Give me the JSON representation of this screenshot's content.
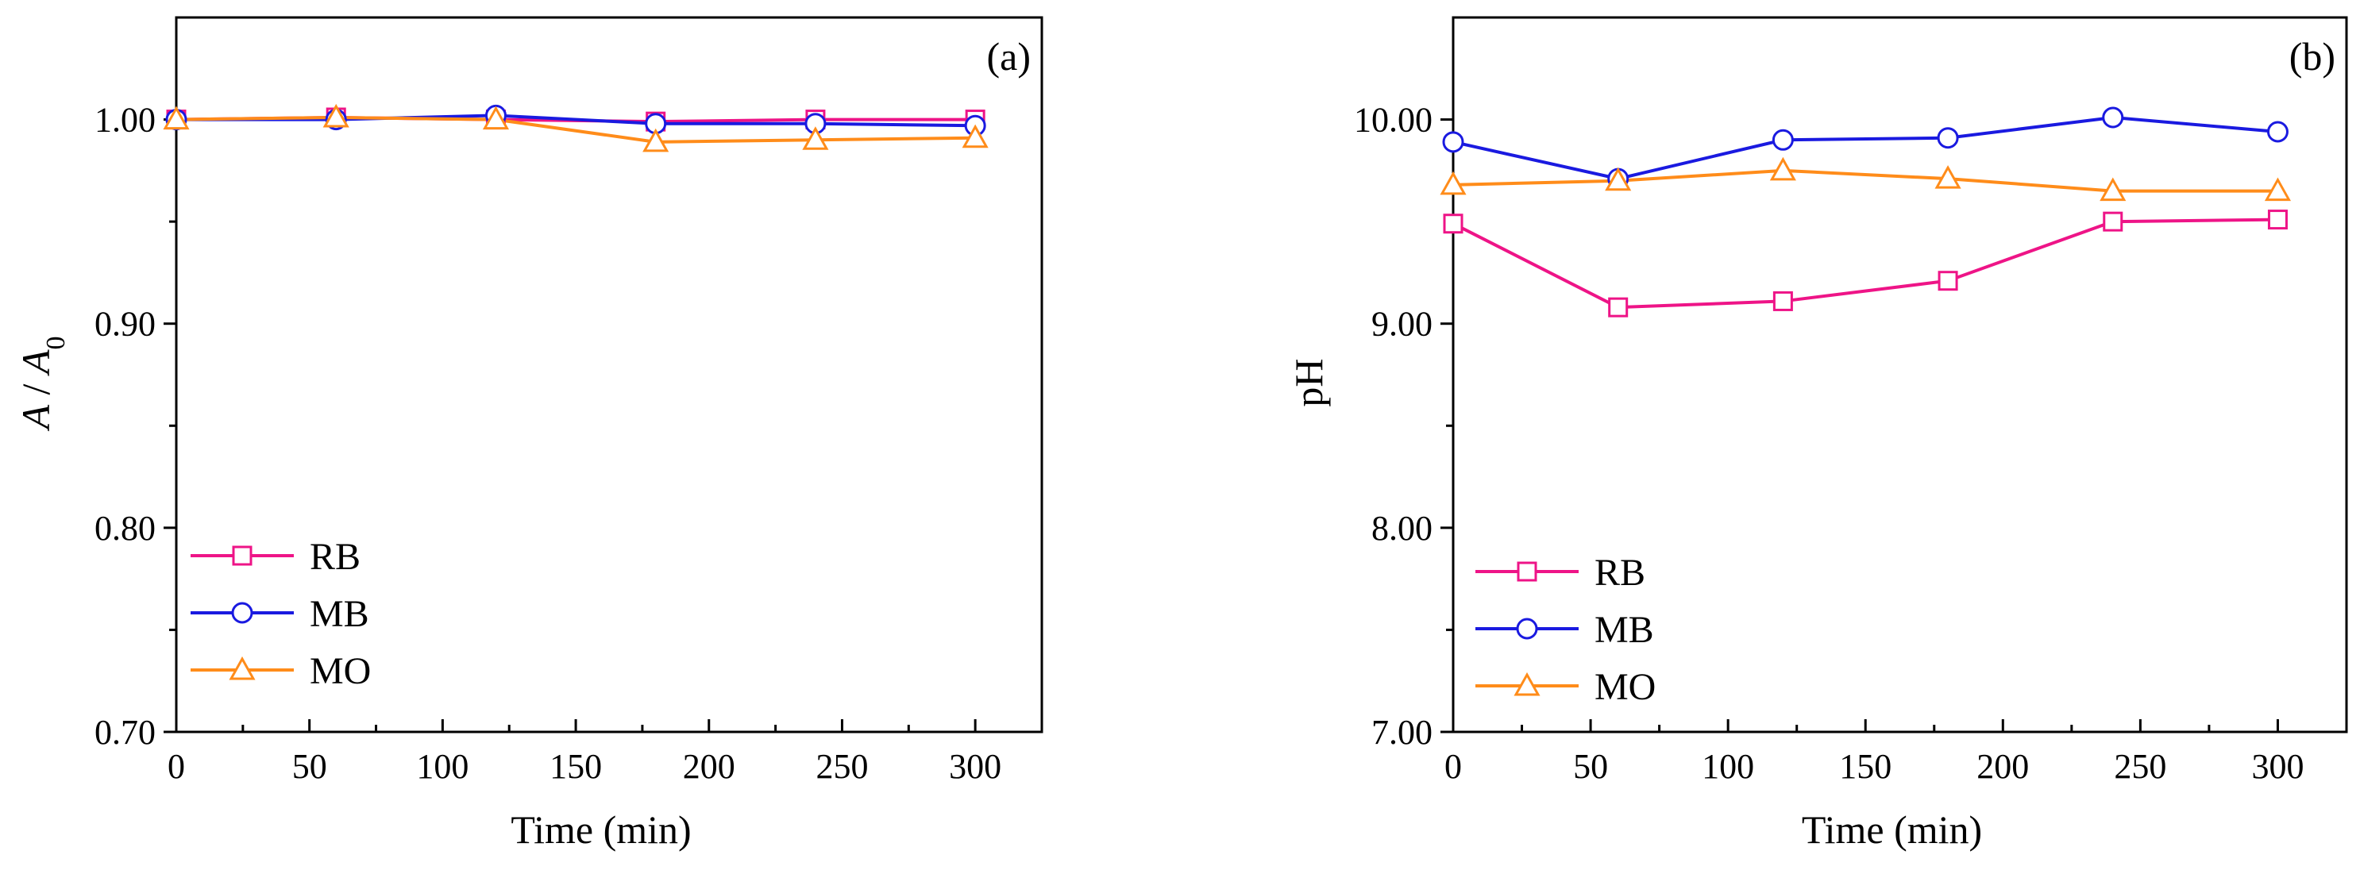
{
  "chart_data": [
    {
      "type": "line",
      "panel_label": "(a)",
      "xlabel": "Time (min)",
      "ylabel": {
        "italic_a": "A",
        "slash": " / ",
        "italic_a0": "A",
        "subscript": "0"
      },
      "x": [
        0,
        60,
        120,
        180,
        240,
        300
      ],
      "xlim": [
        0,
        325
      ],
      "ylim": [
        0.7,
        1.05
      ],
      "xticks": [
        "0",
        "50",
        "100",
        "150",
        "200",
        "250",
        "300"
      ],
      "yticks": [
        "0.70",
        "0.80",
        "0.90",
        "1.00"
      ],
      "legend_position": "lower-left",
      "series": [
        {
          "name": "RB",
          "color": "#ee1487",
          "marker": "square",
          "values": [
            1.0,
            1.001,
            1.0,
            0.999,
            1.0,
            1.0
          ]
        },
        {
          "name": "MB",
          "color": "#1a1ae0",
          "marker": "circle",
          "values": [
            1.0,
            1.0,
            1.002,
            0.998,
            0.998,
            0.997
          ]
        },
        {
          "name": "MO",
          "color": "#ff8c1a",
          "marker": "triangle",
          "values": [
            1.0,
            1.001,
            1.0,
            0.989,
            0.99,
            0.991
          ]
        }
      ]
    },
    {
      "type": "line",
      "panel_label": "(b)",
      "xlabel": "Time (min)",
      "ylabel": "pH",
      "x": [
        0,
        60,
        120,
        180,
        240,
        300
      ],
      "xlim": [
        0,
        325
      ],
      "ylim": [
        7.0,
        10.5
      ],
      "xticks": [
        "0",
        "50",
        "100",
        "150",
        "200",
        "250",
        "300"
      ],
      "yticks": [
        "7.00",
        "8.00",
        "9.00",
        "10.00"
      ],
      "legend_position": "lower-left",
      "series": [
        {
          "name": "RB",
          "color": "#ee1487",
          "marker": "square",
          "values": [
            9.49,
            9.08,
            9.11,
            9.21,
            9.5,
            9.51
          ]
        },
        {
          "name": "MB",
          "color": "#1a1ae0",
          "marker": "circle",
          "values": [
            9.89,
            9.71,
            9.9,
            9.91,
            10.01,
            9.94
          ]
        },
        {
          "name": "MO",
          "color": "#ff8c1a",
          "marker": "triangle",
          "values": [
            9.68,
            9.7,
            9.75,
            9.71,
            9.65,
            9.65
          ]
        }
      ]
    }
  ]
}
